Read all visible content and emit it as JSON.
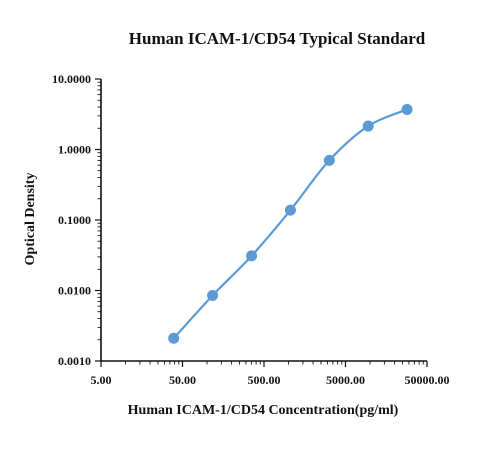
{
  "chart_data": {
    "type": "scatter",
    "title": "Human ICAM-1/CD54 Typical Standard",
    "xlabel": "Human ICAM-1/CD54  Concentration(pg/ml)",
    "ylabel": "Optical Density",
    "x_scale": "log",
    "y_scale": "log",
    "xlim": [
      5,
      50000
    ],
    "ylim": [
      0.001,
      10
    ],
    "x_ticks": [
      "5.00",
      "50.00",
      "500.00",
      "5000.00",
      "50000.00"
    ],
    "y_ticks": [
      "0.0010",
      "0.0100",
      "0.1000",
      "1.0000",
      "10.0000"
    ],
    "grid": false,
    "legend": "none",
    "series_color": "#5b9bd5",
    "series": [
      {
        "x": [
          39,
          117,
          352,
          1055,
          3164,
          9492,
          28477
        ],
        "y": [
          0.0021,
          0.0085,
          0.031,
          0.138,
          0.7,
          2.15,
          3.7
        ],
        "curve": "smooth"
      }
    ]
  }
}
